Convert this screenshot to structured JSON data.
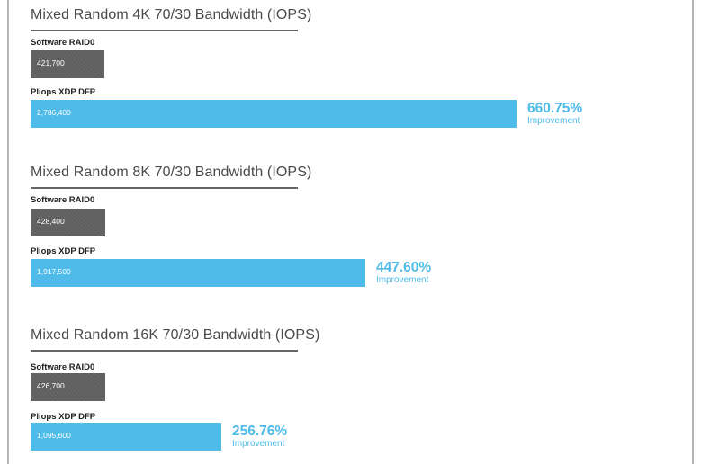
{
  "chart_data": [
    {
      "type": "bar",
      "orientation": "horizontal",
      "title": "Mixed Random 4K 70/30 Bandwidth  (IOPS)",
      "categories": [
        "Software RAID0",
        "Pliops XDP DFP"
      ],
      "values": [
        421700,
        2786400
      ],
      "value_labels": [
        "421,700",
        "2,786,400"
      ],
      "colors": [
        "#5f5f5f",
        "#4ebbe9"
      ],
      "improvement": {
        "value": "660.75%",
        "label": "Improvement"
      }
    },
    {
      "type": "bar",
      "orientation": "horizontal",
      "title": "Mixed Random 8K 70/30 Bandwidth  (IOPS)",
      "categories": [
        "Software RAID0",
        "Pliops XDP DFP"
      ],
      "values": [
        428400,
        1917500
      ],
      "value_labels": [
        "428,400",
        "1,917,500"
      ],
      "colors": [
        "#5f5f5f",
        "#4ebbe9"
      ],
      "improvement": {
        "value": "447.60%",
        "label": "Improvement"
      }
    },
    {
      "type": "bar",
      "orientation": "horizontal",
      "title": "Mixed Random 16K 70/30 Bandwidth  (IOPS)",
      "categories": [
        "Software RAID0",
        "Pliops XDP DFP"
      ],
      "values": [
        426700,
        1095600
      ],
      "value_labels": [
        "426,700",
        "1,095,600"
      ],
      "colors": [
        "#5f5f5f",
        "#4ebbe9"
      ],
      "improvement": {
        "value": "256.76%",
        "label": "Improvement"
      }
    }
  ]
}
